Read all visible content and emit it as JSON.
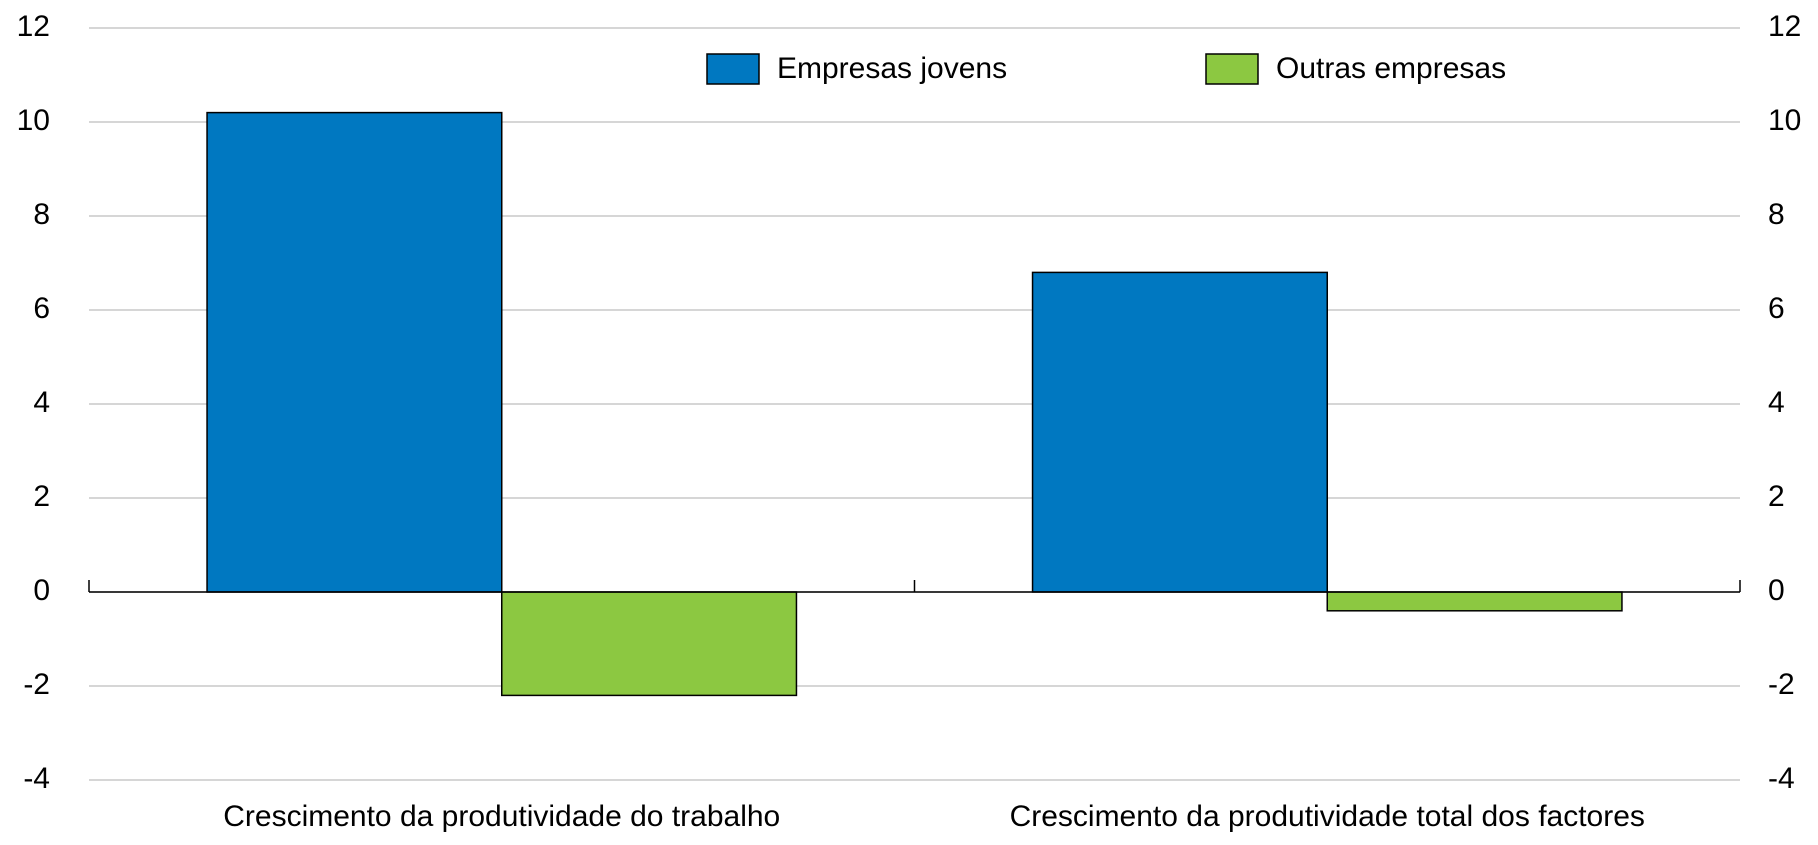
{
  "chart_data": {
    "type": "bar",
    "categories": [
      "Crescimento da produtividade do trabalho",
      "Crescimento da produtividade total dos factores"
    ],
    "series": [
      {
        "name": "Empresas jovens",
        "color": "#0078c1",
        "values": [
          10.2,
          6.8
        ]
      },
      {
        "name": "Outras empresas",
        "color": "#8cc841",
        "values": [
          -2.2,
          -0.4
        ]
      }
    ],
    "ylim": [
      -4,
      12
    ],
    "yticks": [
      -4,
      -2,
      0,
      2,
      4,
      6,
      8,
      10,
      12
    ],
    "y2lim": [
      -4,
      12
    ],
    "y2ticks": [
      -4,
      -2,
      0,
      2,
      4,
      6,
      8,
      10,
      12
    ],
    "grid": true,
    "legend": "top"
  }
}
